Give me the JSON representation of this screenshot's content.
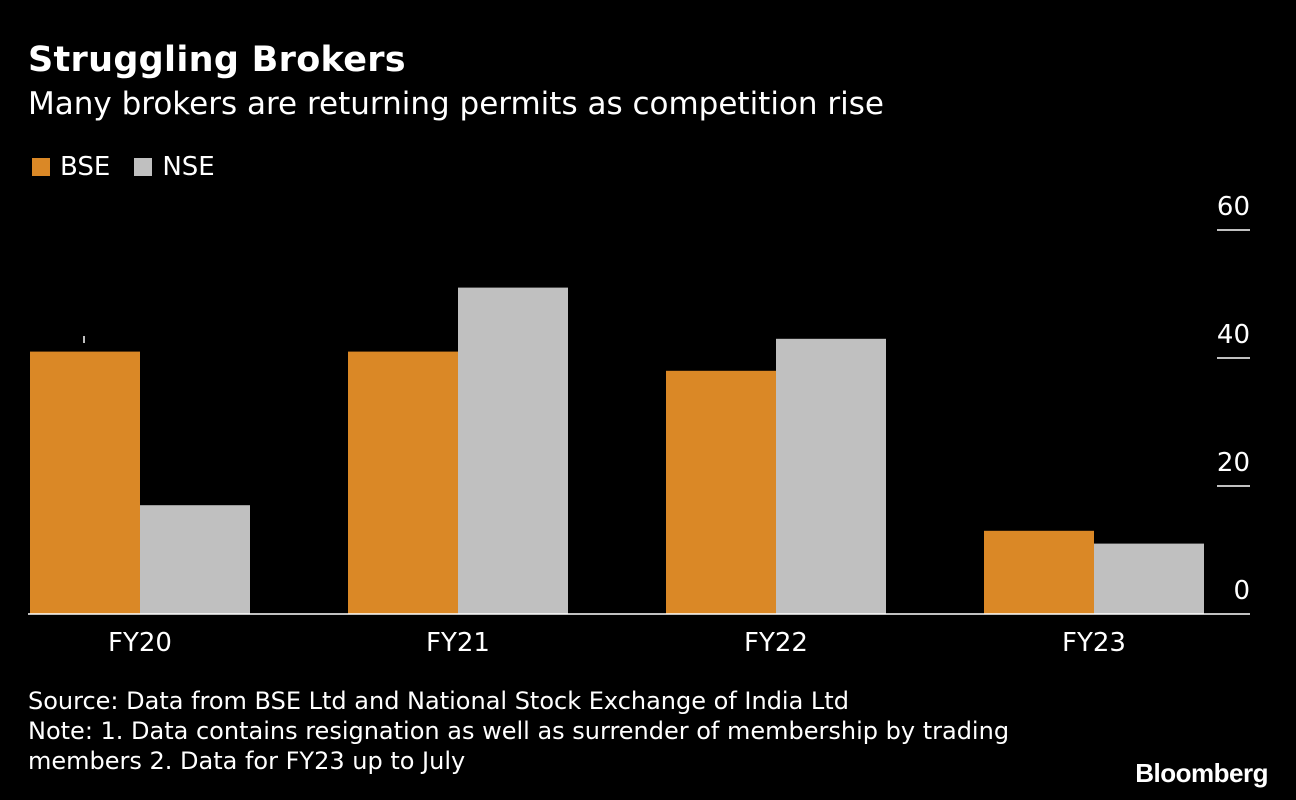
{
  "header": {
    "title": "Struggling Brokers",
    "subtitle": "Many brokers are returning permits as competition rise"
  },
  "colors": {
    "bse": "#DA8826",
    "nse": "#C0C0C0",
    "background": "#000000",
    "text": "#FFFFFF"
  },
  "chart_data": {
    "type": "bar",
    "title": "Struggling Brokers",
    "subtitle": "Many brokers are returning permits as competition rise",
    "categories": [
      "FY20",
      "FY21",
      "FY22",
      "FY23"
    ],
    "series": [
      {
        "name": "BSE",
        "color": "#DA8826",
        "values": [
          41,
          41,
          38,
          13
        ]
      },
      {
        "name": "NSE",
        "color": "#C0C0C0",
        "values": [
          17,
          51,
          43,
          11
        ]
      }
    ],
    "ylim": [
      0,
      60
    ],
    "yticks": [
      0,
      20,
      40,
      60
    ],
    "y_axis_side": "right",
    "xlabel": "",
    "ylabel": "",
    "legend_position": "top-left",
    "grid": false
  },
  "footer": {
    "source": "Source: Data from BSE Ltd and National Stock Exchange of India Ltd",
    "note_line1": "Note: 1. Data contains resignation as well as surrender of membership by trading",
    "note_line2": "members 2. Data for FY23 up to July",
    "brand": "Bloomberg"
  }
}
